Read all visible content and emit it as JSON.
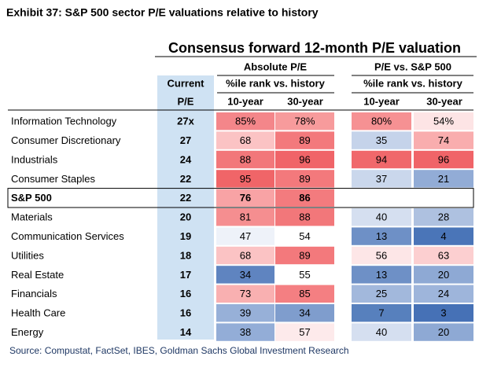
{
  "title": "Exhibit 37: S&P 500 sector P/E valuations relative to history",
  "table": {
    "header": "Consensus forward 12-month P/E valuation",
    "groups": [
      "Absolute P/E",
      "P/E vs. S&P 500"
    ],
    "subheader": "%ile rank vs. history",
    "current": [
      "Current",
      "P/E"
    ],
    "periods": [
      "10-year",
      "30-year"
    ],
    "rows": [
      {
        "name": "Information Technology",
        "pe": "27x",
        "values": [
          "85%",
          "78%",
          "80%",
          "54%"
        ],
        "colors": [
          "#f4868a",
          "#f79b9c",
          "#f69193",
          "#fde4e5"
        ]
      },
      {
        "name": "Consumer Discretionary",
        "pe": "27",
        "values": [
          "68",
          "89",
          "35",
          "74"
        ],
        "colors": [
          "#fbc3c4",
          "#f3797c",
          "#c5d3ea",
          "#f9adae"
        ]
      },
      {
        "name": "Industrials",
        "pe": "24",
        "values": [
          "88",
          "96",
          "94",
          "96"
        ],
        "colors": [
          "#f2777a",
          "#f06468",
          "#f0686b",
          "#f06468"
        ]
      },
      {
        "name": "Consumer Staples",
        "pe": "22",
        "values": [
          "95",
          "89",
          "37",
          "21"
        ],
        "colors": [
          "#f06568",
          "#f3797c",
          "#cad7ec",
          "#92acd6"
        ]
      },
      {
        "name": "S&P 500",
        "pe": "22",
        "values": [
          "76",
          "86"
        ],
        "colors": [
          "#f8a3a5",
          "#f37b7e"
        ],
        "highlight": true
      },
      {
        "name": "Materials",
        "pe": "20",
        "values": [
          "81",
          "88",
          "40",
          "28"
        ],
        "colors": [
          "#f58e90",
          "#f2777a",
          "#d5dff0",
          "#aec1e0"
        ]
      },
      {
        "name": "Communication Services",
        "pe": "19",
        "values": [
          "47",
          "54",
          "13",
          "4"
        ],
        "colors": [
          "#eef2f9",
          "#ffffff",
          "#6e90c6",
          "#4a75b8"
        ]
      },
      {
        "name": "Utilities",
        "pe": "18",
        "values": [
          "68",
          "89",
          "56",
          "63"
        ],
        "colors": [
          "#fbc3c4",
          "#f3797c",
          "#fde6e7",
          "#fccfd0"
        ]
      },
      {
        "name": "Real Estate",
        "pe": "17",
        "values": [
          "34",
          "55",
          "13",
          "20"
        ],
        "colors": [
          "#5f84c0",
          "#ffffff",
          "#6e90c6",
          "#8ea9d4"
        ]
      },
      {
        "name": "Financials",
        "pe": "16",
        "values": [
          "73",
          "85",
          "25",
          "24"
        ],
        "colors": [
          "#f9b0b1",
          "#f47f82",
          "#a2b8dc",
          "#9eb5db"
        ]
      },
      {
        "name": "Health Care",
        "pe": "16",
        "values": [
          "39",
          "34",
          "7",
          "3"
        ],
        "colors": [
          "#97b0d8",
          "#7f9dcd",
          "#5780bd",
          "#4671b6"
        ]
      },
      {
        "name": "Energy",
        "pe": "14",
        "values": [
          "38",
          "57",
          "40",
          "20"
        ],
        "colors": [
          "#93add7",
          "#fdeaeb",
          "#d5dff0",
          "#8ea9d4"
        ]
      }
    ]
  },
  "source": "Source: Compustat, FactSet, IBES, Goldman Sachs Global Investment Research"
}
